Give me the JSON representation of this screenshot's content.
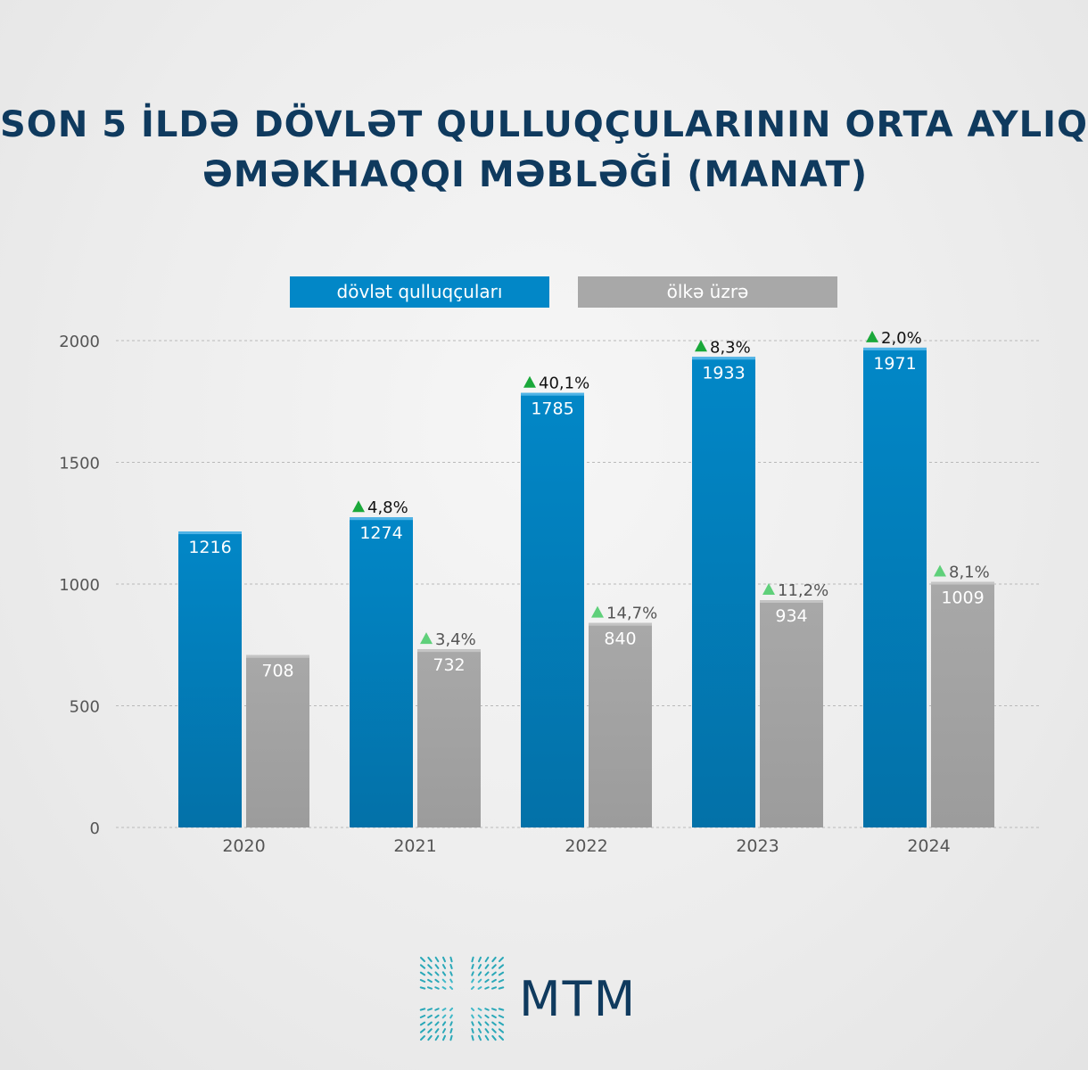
{
  "title": {
    "line1": "SON 5 İLDƏ DÖVLƏT QULLUQÇULARININ ORTA AYLIQ",
    "line2": "ƏMƏKHAQQI MƏBLƏĞİ (MANAT)"
  },
  "legend": {
    "gov_label": "dövlət qulluqçuları",
    "country_label": "ölkə üzrə"
  },
  "brand": {
    "name": "MTM"
  },
  "colors": {
    "gov_bar": "#0287c7",
    "country_bar": "#a8a8a8",
    "title": "#0f3a5e",
    "up_arrow_dark": "#1aa83a",
    "up_arrow_light": "#5fd07a"
  },
  "chart_data": {
    "type": "bar",
    "categories": [
      "2020",
      "2021",
      "2022",
      "2023",
      "2024"
    ],
    "series": [
      {
        "name": "dövlət qulluqçuları",
        "values": [
          1216,
          1274,
          1785,
          1933,
          1971
        ],
        "labels": [
          "1216",
          "1274",
          "1785",
          "1933",
          "1971"
        ],
        "changes": [
          null,
          "4,8%",
          "40,1%",
          "8,3%",
          "2,0%"
        ]
      },
      {
        "name": "ölkə üzrə",
        "values": [
          708,
          732,
          840,
          934,
          1009
        ],
        "labels": [
          "708",
          "732",
          "840",
          "934",
          "1009"
        ],
        "changes": [
          null,
          "3,4%",
          "14,7%",
          "11,2%",
          "8,1%"
        ]
      }
    ],
    "ylim": [
      0,
      2000
    ],
    "yticks": [
      "0",
      "500",
      "1000",
      "1500",
      "2000"
    ],
    "grid": true,
    "legend_position": "top-center"
  }
}
